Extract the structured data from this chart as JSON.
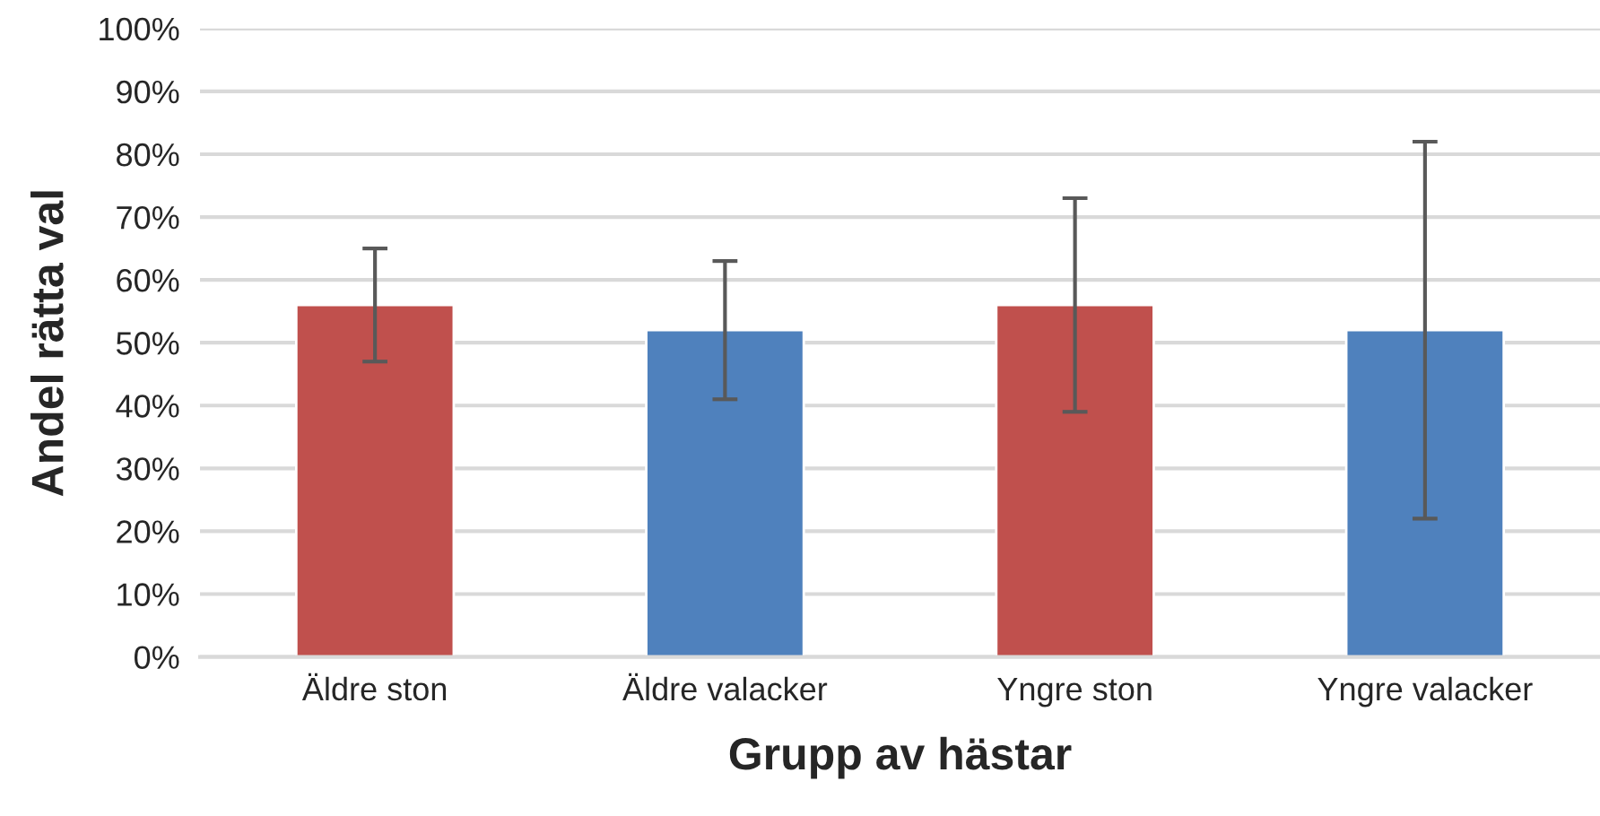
{
  "chart_data": {
    "type": "bar",
    "xlabel": "Grupp av hästar",
    "ylabel": "Andel rätta val",
    "categories": [
      "Äldre ston",
      "Äldre valacker",
      "Yngre ston",
      "Yngre valacker"
    ],
    "values": [
      56,
      52,
      56,
      52
    ],
    "colors": [
      "#c0504d",
      "#4f81bd",
      "#c0504d",
      "#4f81bd"
    ],
    "errors": [
      [
        47,
        65
      ],
      [
        41,
        63
      ],
      [
        39,
        73
      ],
      [
        22,
        82
      ]
    ],
    "ylim": [
      0,
      100
    ],
    "yticks": [
      {
        "value": 0,
        "label": "0%"
      },
      {
        "value": 10,
        "label": "10%"
      },
      {
        "value": 20,
        "label": "20%"
      },
      {
        "value": 30,
        "label": "30%"
      },
      {
        "value": 40,
        "label": "40%"
      },
      {
        "value": 50,
        "label": "50%"
      },
      {
        "value": 60,
        "label": "60%"
      },
      {
        "value": 70,
        "label": "70%"
      },
      {
        "value": 80,
        "label": "80%"
      },
      {
        "value": 90,
        "label": "90%"
      },
      {
        "value": 100,
        "label": "100%"
      }
    ],
    "grid": "y",
    "legend": false
  }
}
